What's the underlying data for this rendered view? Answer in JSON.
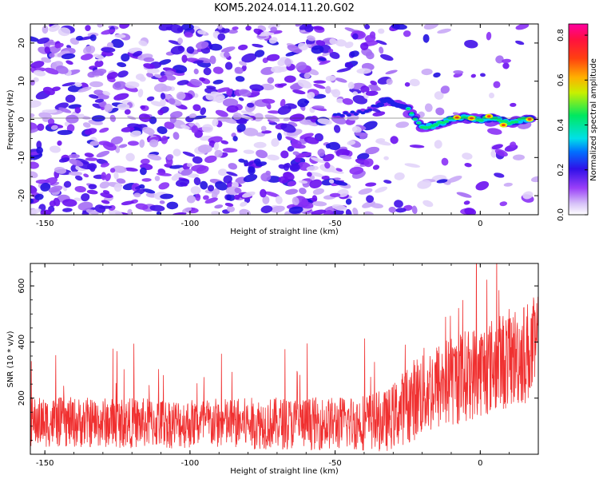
{
  "title": "KOM5.2024.014.11.20.G02",
  "chart_data": [
    {
      "type": "heatmap",
      "xlabel": "Height of straight line (km)",
      "ylabel": "Frequency (Hz)",
      "xlim": [
        -155,
        20
      ],
      "ylim": [
        -25,
        25
      ],
      "xticks": [
        -150,
        -100,
        -50,
        0
      ],
      "yticks": [
        -20,
        -10,
        0,
        10,
        20
      ],
      "colorbar": {
        "label": "Normalized spectral amplitude",
        "range": [
          0,
          0.85
        ],
        "ticks": [
          0.0,
          0.2,
          0.4,
          0.6,
          0.8
        ],
        "colormap": [
          "#ffffff",
          "#d0b8f8",
          "#8020f8",
          "#1010e0",
          "#00c8ff",
          "#00f070",
          "#e8f000",
          "#ff8000",
          "#ff1010",
          "#ff00a0"
        ]
      },
      "signal_track": {
        "description_points_km_hz": [
          [
            -50,
            1
          ],
          [
            -40,
            2
          ],
          [
            -32,
            5
          ],
          [
            -25,
            3
          ],
          [
            -20,
            -2
          ],
          [
            -15,
            -1.5
          ],
          [
            -10,
            0
          ],
          [
            -5,
            0.5
          ],
          [
            0,
            0
          ],
          [
            5,
            0.5
          ],
          [
            10,
            -1
          ],
          [
            15,
            0
          ],
          [
            18,
            0
          ]
        ],
        "peak_amplitude": 0.75
      }
    },
    {
      "type": "line",
      "xlabel": "Height of straight line (km)",
      "ylabel": "SNR (10 * v/v)",
      "xlim": [
        -155,
        20
      ],
      "ylim": [
        0,
        680
      ],
      "xticks": [
        -150,
        -100,
        -50,
        0
      ],
      "yticks": [
        200,
        400,
        600
      ],
      "color": "#f03030",
      "series_profile": {
        "x_segments": [
          -155,
          -100,
          -50,
          -32,
          -20,
          0,
          20
        ],
        "baseline": [
          115,
          110,
          110,
          120,
          220,
          300,
          380
        ],
        "spread": [
          90,
          90,
          95,
          110,
          160,
          170,
          190
        ]
      }
    }
  ]
}
